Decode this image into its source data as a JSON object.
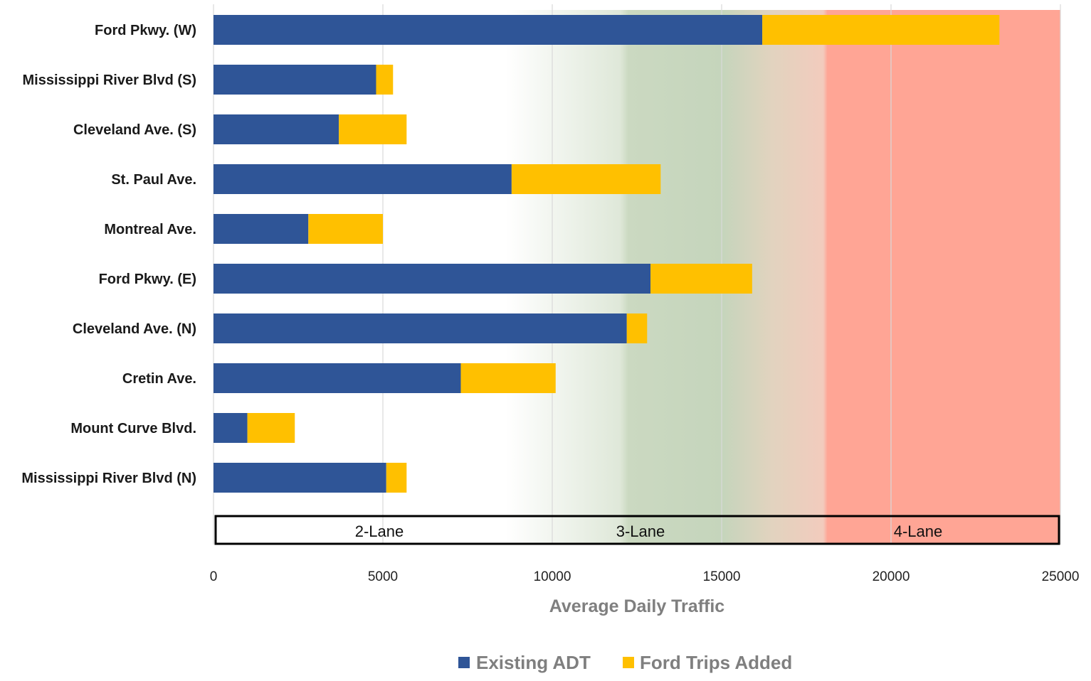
{
  "chart_data": {
    "type": "bar",
    "orientation": "horizontal",
    "stacked": true,
    "categories": [
      "Ford Pkwy. (W)",
      "Mississippi River Blvd (S)",
      "Cleveland Ave. (S)",
      "St. Paul Ave.",
      "Montreal Ave.",
      "Ford Pkwy. (E)",
      "Cleveland Ave. (N)",
      "Cretin Ave.",
      "Mount Curve Blvd.",
      "Mississippi River Blvd (N)"
    ],
    "series": [
      {
        "name": "Existing ADT",
        "color": "#2f5597",
        "values": [
          16200,
          4800,
          3700,
          8800,
          2800,
          12900,
          12200,
          7300,
          1000,
          5100
        ]
      },
      {
        "name": "Ford Trips Added",
        "color": "#ffc000",
        "values": [
          7000,
          500,
          2000,
          4400,
          2200,
          3000,
          600,
          2800,
          1400,
          600
        ]
      }
    ],
    "xlabel": "Average Daily Traffic",
    "ylabel": "",
    "xlim": [
      0,
      25000
    ],
    "xticks": [
      "0",
      "5000",
      "10000",
      "15000",
      "20000",
      "25000"
    ],
    "grid": "vertical",
    "legend_position": "bottom",
    "lane_zones": [
      {
        "label": "2-Lane",
        "color": "#ffffff"
      },
      {
        "label": "3-Lane",
        "color": "#c5d5bc"
      },
      {
        "label": "4-Lane",
        "color": "#ffa595"
      }
    ]
  }
}
